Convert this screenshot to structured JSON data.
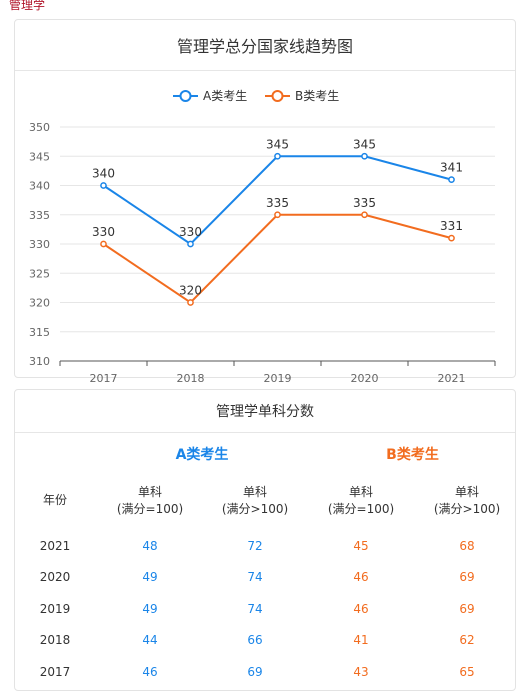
{
  "page_label": "管理学",
  "chart_data": {
    "type": "line",
    "title": "管理学总分国家线趋势图",
    "categories": [
      "2017",
      "2018",
      "2019",
      "2020",
      "2021"
    ],
    "series": [
      {
        "name": "A类考生",
        "values": [
          340,
          330,
          345,
          345,
          341
        ],
        "color": "#1a85e8"
      },
      {
        "name": "B类考生",
        "values": [
          330,
          320,
          335,
          335,
          331
        ],
        "color": "#f26c1f"
      }
    ],
    "ylim": [
      310,
      350
    ],
    "yticks": [
      310,
      315,
      320,
      325,
      330,
      335,
      340,
      345,
      350
    ],
    "xlabel": "",
    "ylabel": "",
    "grid": true,
    "legend": "top-center"
  },
  "table": {
    "title": "管理学单科分数",
    "group_a": "A类考生",
    "group_b": "B类考生",
    "year_header": "年份",
    "col_headers": [
      {
        "line1": "单科",
        "line2": "(满分=100)"
      },
      {
        "line1": "单科",
        "line2": "(满分>100)"
      },
      {
        "line1": "单科",
        "line2": "(满分=100)"
      },
      {
        "line1": "单科",
        "line2": "(满分>100)"
      }
    ],
    "rows": [
      {
        "year": "2021",
        "a1": "48",
        "a2": "72",
        "b1": "45",
        "b2": "68"
      },
      {
        "year": "2020",
        "a1": "49",
        "a2": "74",
        "b1": "46",
        "b2": "69"
      },
      {
        "year": "2019",
        "a1": "49",
        "a2": "74",
        "b1": "46",
        "b2": "69"
      },
      {
        "year": "2018",
        "a1": "44",
        "a2": "66",
        "b1": "41",
        "b2": "62"
      },
      {
        "year": "2017",
        "a1": "46",
        "a2": "69",
        "b1": "43",
        "b2": "65"
      }
    ]
  }
}
